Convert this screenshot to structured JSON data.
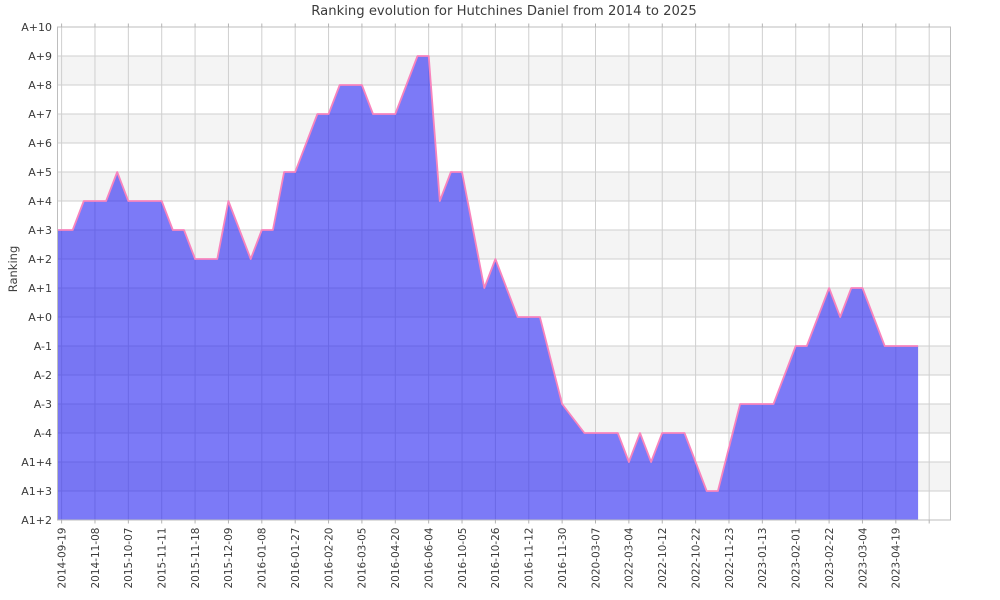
{
  "title": "Ranking evolution for Hutchines Daniel from 2014 to 2025",
  "y_axis": {
    "label": "Ranking"
  },
  "chart_data": {
    "type": "area",
    "title": "Ranking evolution for Hutchines Daniel from 2014 to 2025",
    "xlabel": "",
    "ylabel": "Ranking",
    "grid": true,
    "legend": "none",
    "background_bands": "alternating white and light gray per rank level",
    "y_levels_bottom_to_top": [
      "A1+2",
      "A1+3",
      "A1+4",
      "A-4",
      "A-3",
      "A-2",
      "A-1",
      "A+0",
      "A+1",
      "A+2",
      "A+3",
      "A+4",
      "A+5",
      "A+6",
      "A+7",
      "A+8",
      "A+9",
      "A+10"
    ],
    "x_tick_labels": [
      "2014-09-19",
      "2014-11-08",
      "2015-10-07",
      "2015-11-11",
      "2015-11-18",
      "2015-12-09",
      "2016-01-08",
      "2016-01-27",
      "2016-02-20",
      "2016-03-05",
      "2016-04-20",
      "2016-06-04",
      "2016-10-05",
      "2016-10-26",
      "2016-11-12",
      "2016-11-30",
      "2020-03-07",
      "2022-03-04",
      "2022-10-12",
      "2022-10-22",
      "2022-11-23",
      "2023-01-13",
      "2023-02-01",
      "2023-02-22",
      "2023-03-04",
      "2023-04-19"
    ],
    "points_per_tick": 3,
    "total_points": 78,
    "series_vertices_point_index_and_rank": [
      [
        0,
        "A+3"
      ],
      [
        1,
        "A+3"
      ],
      [
        2,
        "A+4"
      ],
      [
        4,
        "A+4"
      ],
      [
        5,
        "A+5"
      ],
      [
        6,
        "A+4"
      ],
      [
        9,
        "A+4"
      ],
      [
        10,
        "A+3"
      ],
      [
        11,
        "A+3"
      ],
      [
        12,
        "A+2"
      ],
      [
        14,
        "A+2"
      ],
      [
        15,
        "A+4"
      ],
      [
        17,
        "A+2"
      ],
      [
        18,
        "A+3"
      ],
      [
        19,
        "A+3"
      ],
      [
        20,
        "A+5"
      ],
      [
        21,
        "A+5"
      ],
      [
        23,
        "A+7"
      ],
      [
        24,
        "A+7"
      ],
      [
        25,
        "A+8"
      ],
      [
        27,
        "A+8"
      ],
      [
        28,
        "A+7"
      ],
      [
        30,
        "A+7"
      ],
      [
        32,
        "A+9"
      ],
      [
        33,
        "A+9"
      ],
      [
        34,
        "A+4"
      ],
      [
        35,
        "A+5"
      ],
      [
        36,
        "A+5"
      ],
      [
        38,
        "A+1"
      ],
      [
        39,
        "A+2"
      ],
      [
        41,
        "A+0"
      ],
      [
        43,
        "A+0"
      ],
      [
        45,
        "A-3"
      ],
      [
        47,
        "A-4"
      ],
      [
        50,
        "A-4"
      ],
      [
        51,
        "A1+4"
      ],
      [
        52,
        "A-4"
      ],
      [
        53,
        "A1+4"
      ],
      [
        54,
        "A-4"
      ],
      [
        56,
        "A-4"
      ],
      [
        58,
        "A1+3"
      ],
      [
        59,
        "A1+3"
      ],
      [
        61,
        "A-3"
      ],
      [
        64,
        "A-3"
      ],
      [
        66,
        "A-1"
      ],
      [
        67,
        "A-1"
      ],
      [
        69,
        "A+1"
      ],
      [
        70,
        "A+0"
      ],
      [
        71,
        "A+1"
      ],
      [
        72,
        "A+1"
      ],
      [
        74,
        "A-1"
      ],
      [
        77,
        "A-1"
      ]
    ],
    "colors": {
      "area_fill_rgba": [
        47,
        45,
        243,
        0.63
      ],
      "line_color": "#f884bd",
      "gridline_color": "#cfcfcf",
      "band_gray": "#f4f4f4",
      "band_white": "#ffffff",
      "spine_color": "#bdbdbd",
      "tick_mark_color": "#b3b3b3",
      "text_color": "#3a3a3a"
    }
  }
}
